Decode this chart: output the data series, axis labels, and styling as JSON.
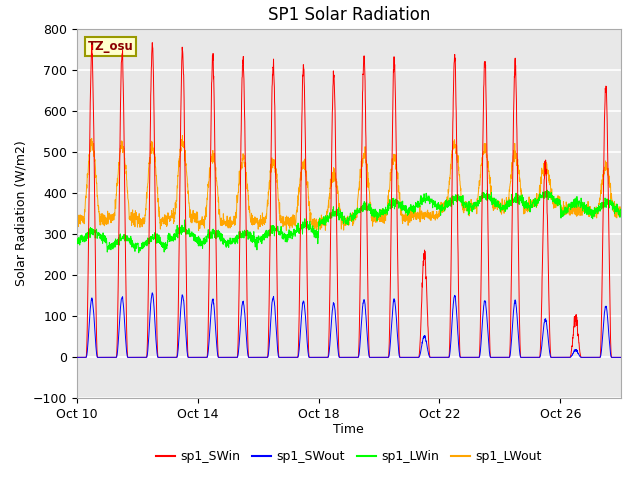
{
  "title": "SP1 Solar Radiation",
  "xlabel": "Time",
  "ylabel": "Solar Radiation (W/m2)",
  "ylim": [
    -100,
    800
  ],
  "yticks": [
    -100,
    0,
    100,
    200,
    300,
    400,
    500,
    600,
    700,
    800
  ],
  "xtick_labels": [
    "Oct 10",
    "Oct 14",
    "Oct 18",
    "Oct 22",
    "Oct 26"
  ],
  "xtick_positions": [
    0,
    4,
    8,
    12,
    16
  ],
  "tz_label": "TZ_osu",
  "legend_entries": [
    "sp1_SWin",
    "sp1_SWout",
    "sp1_LWin",
    "sp1_LWout"
  ],
  "line_colors": [
    "red",
    "blue",
    "lime",
    "orange"
  ],
  "axes_bg": "#e8e8e8",
  "grid_color": "white",
  "title_fontsize": 12,
  "label_fontsize": 9,
  "n_days": 18,
  "pts_per_day": 144,
  "sw_in_peaks": [
    750,
    740,
    760,
    750,
    730,
    725,
    715,
    710,
    685,
    730,
    720,
    250,
    730,
    720,
    710,
    470,
    95,
    660
  ],
  "lw_in_base": [
    295,
    280,
    280,
    300,
    290,
    290,
    300,
    310,
    340,
    355,
    365,
    375,
    375,
    380,
    375,
    385,
    365,
    365
  ],
  "lw_out_base": [
    335,
    340,
    330,
    340,
    330,
    330,
    330,
    330,
    330,
    340,
    340,
    345,
    365,
    370,
    365,
    375,
    360,
    355
  ],
  "lw_out_peak_add": [
    185,
    175,
    185,
    185,
    160,
    155,
    145,
    140,
    115,
    155,
    145,
    0,
    155,
    140,
    130,
    95,
    0,
    105
  ]
}
